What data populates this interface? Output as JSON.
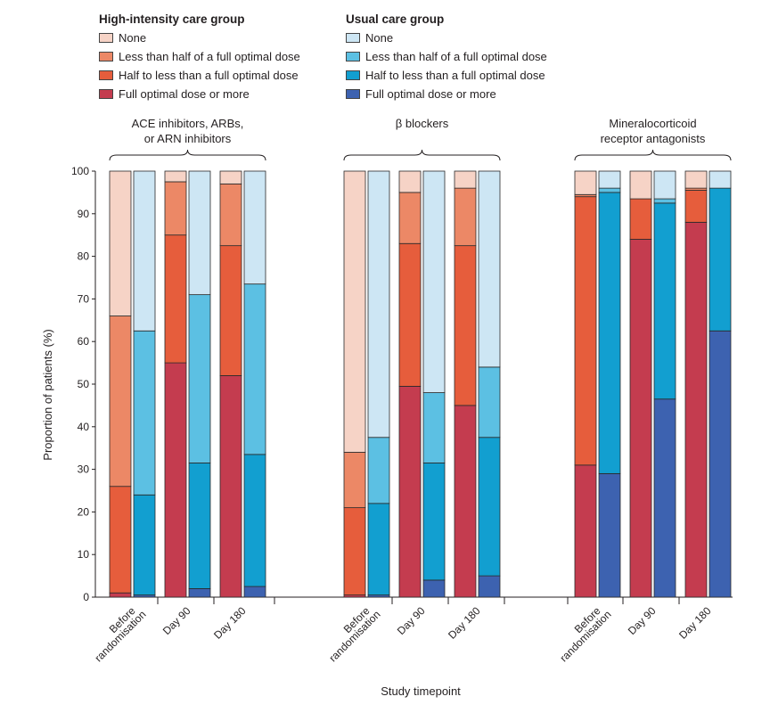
{
  "legend": {
    "hi": {
      "title": "High-intensity care group",
      "items": [
        {
          "label": "None",
          "color": "#f6d3c6"
        },
        {
          "label": "Less than half of a full optimal dose",
          "color": "#ec8866"
        },
        {
          "label": "Half to less than a full optimal dose",
          "color": "#e65d3c"
        },
        {
          "label": "Full optimal dose or more",
          "color": "#c43c4f"
        }
      ]
    },
    "uc": {
      "title": "Usual care group",
      "items": [
        {
          "label": "None",
          "color": "#cde6f4"
        },
        {
          "label": "Less than half of a full optimal dose",
          "color": "#5cc0e3"
        },
        {
          "label": "Half to less than a full optimal dose",
          "color": "#129fd0"
        },
        {
          "label": "Full optimal dose or more",
          "color": "#3d62b0"
        }
      ]
    }
  },
  "chart_data": {
    "type": "bar",
    "stacked": true,
    "ylabel": "Proportion of patients (%)",
    "xlabel": "Study timepoint",
    "ylim": [
      0,
      100
    ],
    "yticks": [
      0,
      10,
      20,
      30,
      40,
      50,
      60,
      70,
      80,
      90,
      100
    ],
    "timepoints": [
      "Before randomisation",
      "Day 90",
      "Day 180"
    ],
    "stack_order_bottom_to_top": [
      "Full optimal dose or more",
      "Half to less than a full optimal dose",
      "Less than half of a full optimal dose",
      "None"
    ],
    "groups": [
      {
        "label": "ACE inhibitors, ARBs, or ARN inhibitors",
        "label_lines": [
          "ACE inhibitors, ARBs,",
          "or ARN inhibitors"
        ],
        "high_intensity": [
          [
            1,
            25,
            40,
            34
          ],
          [
            55,
            30,
            12.5,
            2.5
          ],
          [
            52,
            30.5,
            14.5,
            3
          ]
        ],
        "usual_care": [
          [
            0.5,
            23.5,
            38.5,
            37.5
          ],
          [
            2,
            29.5,
            39.5,
            29
          ],
          [
            2.5,
            31,
            40,
            26.5
          ]
        ]
      },
      {
        "label": "β blockers",
        "label_lines": [
          "β blockers"
        ],
        "high_intensity": [
          [
            0.5,
            20.5,
            13,
            66
          ],
          [
            49.5,
            33.5,
            12,
            5
          ],
          [
            45,
            37.5,
            13.5,
            4
          ]
        ],
        "usual_care": [
          [
            0.5,
            21.5,
            15.5,
            62.5
          ],
          [
            4,
            27.5,
            16.5,
            52
          ],
          [
            5,
            32.5,
            16.5,
            46
          ]
        ]
      },
      {
        "label": "Mineralocorticoid receptor antagonists",
        "label_lines": [
          "Mineralocorticoid",
          "receptor antagonists"
        ],
        "high_intensity": [
          [
            31,
            63,
            0.5,
            5.5
          ],
          [
            84,
            9.5,
            0,
            6.5
          ],
          [
            88,
            7.5,
            0.5,
            4
          ]
        ],
        "usual_care": [
          [
            29,
            66,
            1,
            4
          ],
          [
            46.5,
            46,
            1,
            6.5
          ],
          [
            62.5,
            33.5,
            0,
            4
          ]
        ]
      }
    ]
  }
}
